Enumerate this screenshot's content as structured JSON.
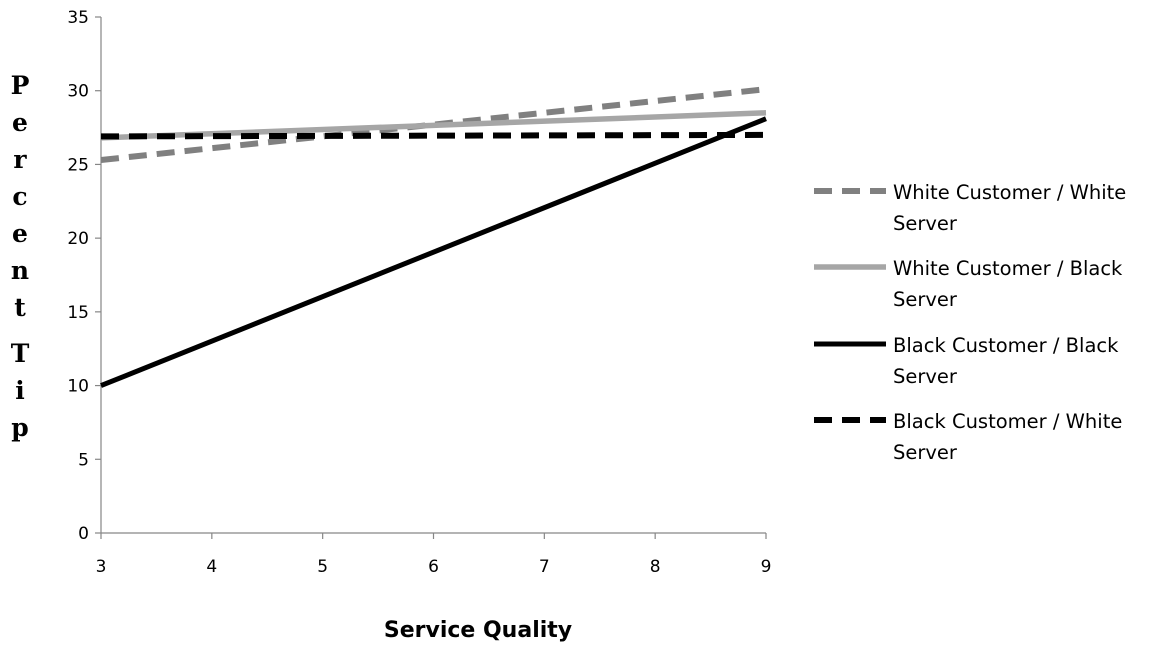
{
  "chart_data": {
    "type": "line",
    "title": "",
    "xlabel": "Service Quality",
    "ylabel": "Percent Tip",
    "ylabel_lines": [
      "Percent",
      "Tip"
    ],
    "xlim": [
      3,
      9
    ],
    "ylim": [
      0,
      35
    ],
    "x_ticks": [
      "3",
      "4",
      "5",
      "6",
      "7",
      "8",
      "9"
    ],
    "y_ticks": [
      "0",
      "5",
      "10",
      "15",
      "20",
      "25",
      "30",
      "35"
    ],
    "grid": false,
    "legend_position": "right",
    "x": [
      3,
      9
    ],
    "series": [
      {
        "name": "White Customer / White Server",
        "name_lines": [
          "White Customer / White",
          "Server"
        ],
        "values": [
          25.3,
          30.1
        ],
        "color": "#808080",
        "style": "dashed"
      },
      {
        "name": "White Customer / Black Server",
        "name_lines": [
          "White Customer / Black",
          "Server"
        ],
        "values": [
          26.8,
          28.5
        ],
        "color": "#a6a6a6",
        "style": "solid"
      },
      {
        "name": "Black Customer / Black Server",
        "name_lines": [
          "Black Customer / Black",
          "Server"
        ],
        "values": [
          10.0,
          28.1
        ],
        "color": "#000000",
        "style": "solid"
      },
      {
        "name": "Black Customer / White Server",
        "name_lines": [
          "Black Customer / White",
          "Server"
        ],
        "values": [
          26.9,
          27.0
        ],
        "color": "#000000",
        "style": "dashed"
      }
    ]
  }
}
